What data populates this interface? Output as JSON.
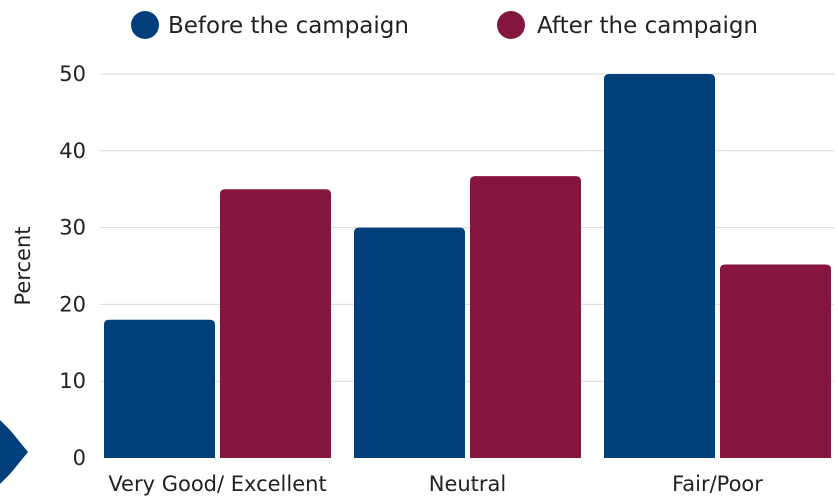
{
  "chart_data": {
    "type": "bar",
    "categories": [
      "Very Good/ Excellent",
      "Neutral",
      "Fair/Poor"
    ],
    "series": [
      {
        "name": "Before the campaign",
        "values": [
          18,
          30,
          50
        ],
        "color": "#003f7a"
      },
      {
        "name": "After the campaign",
        "values": [
          35,
          36.7,
          25.2
        ],
        "color": "#84163f"
      }
    ],
    "title": "",
    "xlabel": "",
    "ylabel": "Percent",
    "ylim": [
      0,
      50
    ],
    "yticks": [
      "0",
      "10",
      "20",
      "30",
      "40",
      "50"
    ],
    "grid": true,
    "legend_position": "top"
  },
  "decoration": {
    "color": "#003f7a"
  }
}
